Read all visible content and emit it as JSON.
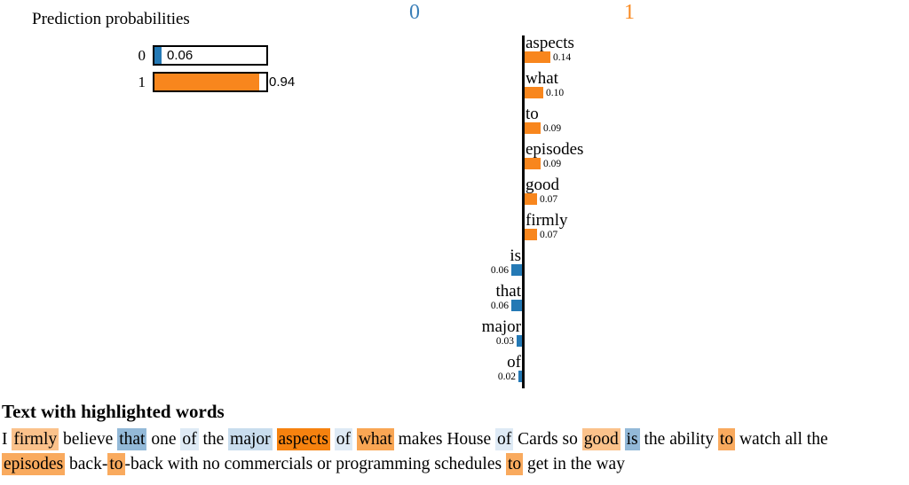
{
  "chart_data": [
    {
      "type": "bar",
      "title": "Prediction probabilities",
      "orientation": "horizontal",
      "categories": [
        "0",
        "1"
      ],
      "values": [
        0.06,
        0.94
      ],
      "colors": [
        "#2479b5",
        "#f8861d"
      ],
      "xlim": [
        0,
        1
      ]
    },
    {
      "type": "bar",
      "title": "Word weights toward class 1 (orange, right) vs class 0 (blue, left)",
      "orientation": "horizontal",
      "categories": [
        "aspects",
        "what",
        "to",
        "episodes",
        "good",
        "firmly",
        "is",
        "that",
        "major",
        "of"
      ],
      "values": [
        0.14,
        0.1,
        0.09,
        0.09,
        0.07,
        0.07,
        -0.06,
        -0.06,
        -0.03,
        -0.02
      ],
      "legend": [
        "0",
        "1"
      ],
      "colors": [
        "#2479b5",
        "#f8861d"
      ]
    }
  ],
  "prediction": {
    "heading": "Prediction probabilities",
    "rows": [
      {
        "label": "0",
        "value_text": "0.06",
        "p": 0.06,
        "fill": "#2479b5"
      },
      {
        "label": "1",
        "value_text": "0.94",
        "p": 0.94,
        "fill": "#f8861d"
      }
    ]
  },
  "feature_plot": {
    "left_header": {
      "label": "0",
      "color": "#3a7fb8"
    },
    "right_header": {
      "label": "1",
      "color": "#f9891f"
    },
    "bar_colors": {
      "left": "#2479b5",
      "right": "#f8861d"
    },
    "items": [
      {
        "word": "aspects",
        "value_text": "0.14",
        "weight": 0.14,
        "side": "right"
      },
      {
        "word": "what",
        "value_text": "0.10",
        "weight": 0.1,
        "side": "right"
      },
      {
        "word": "to",
        "value_text": "0.09",
        "weight": 0.09,
        "side": "right"
      },
      {
        "word": "episodes",
        "value_text": "0.09",
        "weight": 0.09,
        "side": "right"
      },
      {
        "word": "good",
        "value_text": "0.07",
        "weight": 0.07,
        "side": "right"
      },
      {
        "word": "firmly",
        "value_text": "0.07",
        "weight": 0.07,
        "side": "right"
      },
      {
        "word": "is",
        "value_text": "0.06",
        "weight": 0.06,
        "side": "left"
      },
      {
        "word": "that",
        "value_text": "0.06",
        "weight": 0.06,
        "side": "left"
      },
      {
        "word": "major",
        "value_text": "0.03",
        "weight": 0.03,
        "side": "left"
      },
      {
        "word": "of",
        "value_text": "0.02",
        "weight": 0.02,
        "side": "left"
      }
    ]
  },
  "text_section": {
    "heading": "Text with highlighted words",
    "lines": [
      [
        {
          "t": "I"
        },
        {
          "t": "firmly",
          "c": "#fbc28b"
        },
        {
          "t": "believe"
        },
        {
          "t": "that",
          "c": "#93b9d8"
        },
        {
          "t": "one"
        },
        {
          "t": "of",
          "c": "#deeaf5"
        },
        {
          "t": "the"
        },
        {
          "t": "major",
          "c": "#c9ddee"
        },
        {
          "t": "aspects",
          "c": "#f6820f"
        },
        {
          "t": "of",
          "c": "#deeaf5"
        },
        {
          "t": "what",
          "c": "#f9a654"
        },
        {
          "t": "makes"
        },
        {
          "t": "House"
        },
        {
          "t": "of",
          "c": "#deeaf5"
        },
        {
          "t": "Cards"
        },
        {
          "t": "so"
        },
        {
          "t": "good",
          "c": "#fbc28b"
        },
        {
          "t": "is",
          "c": "#93b9d8"
        },
        {
          "t": "the"
        },
        {
          "t": "ability"
        },
        {
          "t": "to",
          "c": "#f9aa5e"
        },
        {
          "t": "watch"
        },
        {
          "t": "all"
        },
        {
          "t": "the"
        }
      ],
      [
        {
          "t": "episodes",
          "c": "#f9aa5e"
        },
        {
          "t": "back-",
          "g": true
        },
        {
          "t": "to",
          "c": "#f9aa5e",
          "g": true
        },
        {
          "t": "-back"
        },
        {
          "t": "with"
        },
        {
          "t": "no"
        },
        {
          "t": "commercials"
        },
        {
          "t": "or"
        },
        {
          "t": "programming"
        },
        {
          "t": "schedules"
        },
        {
          "t": "to",
          "c": "#f9aa5e"
        },
        {
          "t": "get"
        },
        {
          "t": "in"
        },
        {
          "t": "the"
        },
        {
          "t": "way"
        }
      ]
    ]
  }
}
